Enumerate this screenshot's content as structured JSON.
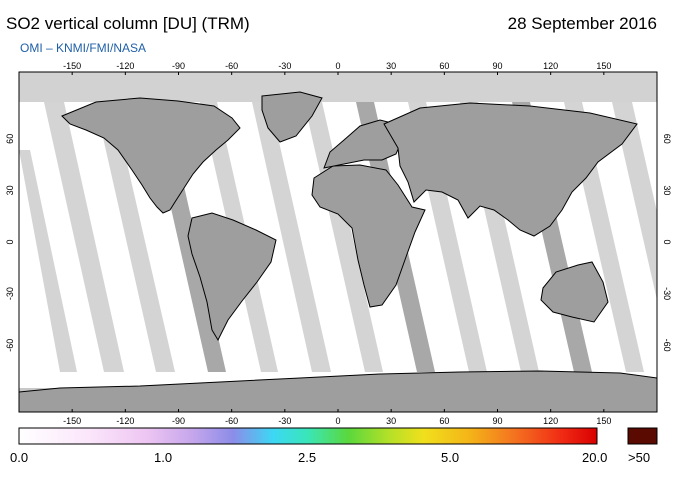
{
  "header": {
    "title": "SO2 vertical column [DU] (TRM)",
    "date": "28 September 2016",
    "credit": "OMI  –  KNMI/FMI/NASA"
  },
  "map": {
    "lon_ticks": [
      "-150",
      "-120",
      "-90",
      "-60",
      "-30",
      "0",
      "30",
      "60",
      "90",
      "120",
      "150"
    ],
    "lat_ticks": [
      "60",
      "30",
      "0",
      "-30",
      "-60"
    ]
  },
  "colorbar": {
    "labels": [
      "0.0",
      "1.0",
      "2.5",
      "5.0",
      "20.0"
    ],
    "overflow_label": ">50",
    "overflow_color": "#5a0a00"
  }
}
